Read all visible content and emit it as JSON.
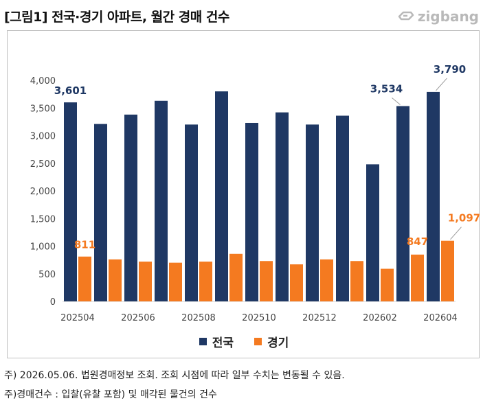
{
  "title": "[그림1] 전국·경기 아파트, 월간 경매 건수",
  "logo_text": "zigbang",
  "notes": [
    "주) 2026.05.06. 법원경매정보 조회. 조회 시점에 따라 일부 수치는 변동될 수 있음.",
    "주)경매건수 : 입찰(유찰 포함) 및 매각된 물건의 건수"
  ],
  "chart_data": {
    "type": "bar",
    "categories": [
      "202504",
      "202505",
      "202506",
      "202507",
      "202508",
      "202509",
      "202510",
      "202511",
      "202512",
      "202601",
      "202602",
      "202603",
      "202604"
    ],
    "x_tick_labels": [
      "202504",
      "",
      "202506",
      "",
      "202508",
      "",
      "202510",
      "",
      "202512",
      "",
      "202602",
      "",
      "202604"
    ],
    "series": [
      {
        "name": "전국",
        "color": "#1f3864",
        "values": [
          3601,
          3210,
          3380,
          3630,
          3200,
          3800,
          3230,
          3420,
          3200,
          3360,
          2480,
          3534,
          3790
        ]
      },
      {
        "name": "경기",
        "color": "#f47a20",
        "values": [
          811,
          760,
          720,
          700,
          720,
          860,
          730,
          670,
          760,
          730,
          590,
          847,
          1097
        ]
      }
    ],
    "data_labels": [
      {
        "series": "전국",
        "category": "202504",
        "text": "3,601"
      },
      {
        "series": "경기",
        "category": "202504",
        "text": "811"
      },
      {
        "series": "전국",
        "category": "202603",
        "text": "3,534"
      },
      {
        "series": "경기",
        "category": "202603",
        "text": "847"
      },
      {
        "series": "전국",
        "category": "202604",
        "text": "3,790"
      },
      {
        "series": "경기",
        "category": "202604",
        "text": "1,097"
      }
    ],
    "y_ticks": [
      "0",
      "500",
      "1,000",
      "1,500",
      "2,000",
      "2,500",
      "3,000",
      "3,500",
      "4,000"
    ],
    "ylim": [
      0,
      4000
    ],
    "grid": false,
    "legend": "bottom"
  }
}
